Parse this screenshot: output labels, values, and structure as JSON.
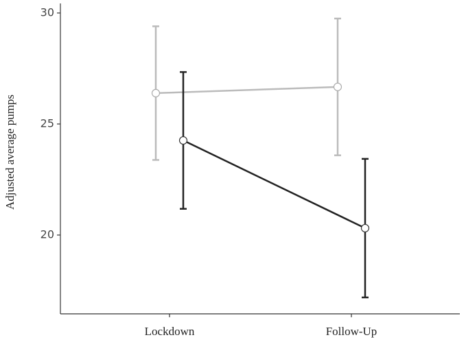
{
  "chart_data": {
    "type": "errorbar-line",
    "y_label": "Adjusted average pumps",
    "categories": [
      "Lockdown",
      "Follow-Up"
    ],
    "series": [
      {
        "color": "#bbbbbb",
        "values": [
          26.39,
          26.67
        ],
        "errors": [
          3.01,
          3.08
        ]
      },
      {
        "color": "#222222",
        "values": [
          24.26,
          20.31
        ],
        "errors": [
          3.08,
          3.12
        ]
      }
    ],
    "ylim": [
      16.45,
      30.43
    ],
    "yticks": [
      20,
      25,
      30
    ]
  }
}
